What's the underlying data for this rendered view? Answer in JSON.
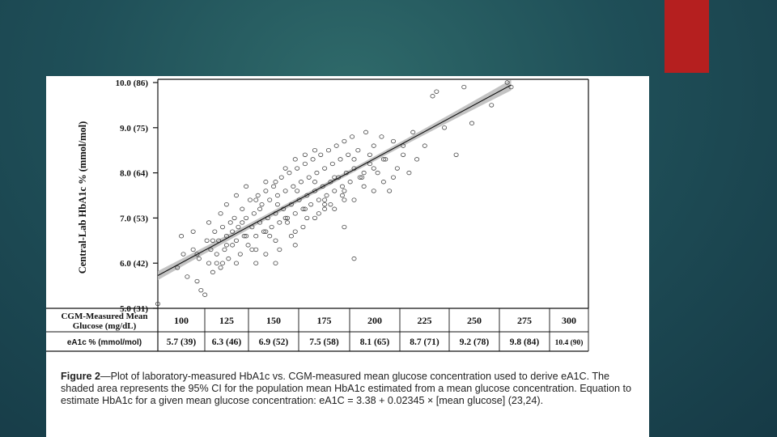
{
  "slide": {
    "accent_color": "#b51f1f",
    "background_color": "#1f4f58"
  },
  "chart_data": {
    "type": "scatter",
    "ylabel": "Central-Lab HbA1c % (mmol/mol)",
    "yticks": [
      "5.0 (31)",
      "6.0 (42)",
      "7.0 (53)",
      "8.0 (64)",
      "9.0 (75)",
      "10.0 (86)"
    ],
    "ylim": [
      5.0,
      10.0
    ],
    "xlim": [
      100,
      300
    ],
    "regression": {
      "intercept": 3.38,
      "slope": 0.02345,
      "x_range": [
        100,
        280
      ],
      "band_halfwidth_start": 0.1,
      "band_halfwidth_mid": 0.05,
      "band_halfwidth_end": 0.12
    },
    "points": [
      [
        100,
        5.1
      ],
      [
        110,
        5.9
      ],
      [
        112,
        6.6
      ],
      [
        115,
        5.7
      ],
      [
        118,
        6.3
      ],
      [
        120,
        5.6
      ],
      [
        121,
        6.1
      ],
      [
        122,
        5.4
      ],
      [
        124,
        5.3
      ],
      [
        125,
        6.5
      ],
      [
        126,
        6.0
      ],
      [
        127,
        6.3
      ],
      [
        128,
        5.8
      ],
      [
        129,
        6.7
      ],
      [
        130,
        6.2
      ],
      [
        131,
        6.5
      ],
      [
        132,
        5.9
      ],
      [
        133,
        6.8
      ],
      [
        134,
        6.3
      ],
      [
        135,
        6.6
      ],
      [
        136,
        6.1
      ],
      [
        137,
        6.9
      ],
      [
        138,
        6.4
      ],
      [
        139,
        7.0
      ],
      [
        140,
        6.5
      ],
      [
        141,
        6.8
      ],
      [
        142,
        6.2
      ],
      [
        143,
        7.2
      ],
      [
        144,
        6.6
      ],
      [
        145,
        7.0
      ],
      [
        146,
        6.4
      ],
      [
        147,
        7.4
      ],
      [
        148,
        6.8
      ],
      [
        149,
        7.1
      ],
      [
        150,
        6.6
      ],
      [
        151,
        7.5
      ],
      [
        152,
        6.9
      ],
      [
        153,
        7.3
      ],
      [
        154,
        6.7
      ],
      [
        155,
        7.6
      ],
      [
        156,
        7.0
      ],
      [
        157,
        7.4
      ],
      [
        158,
        6.8
      ],
      [
        159,
        7.7
      ],
      [
        160,
        7.1
      ],
      [
        161,
        7.5
      ],
      [
        162,
        6.9
      ],
      [
        163,
        7.9
      ],
      [
        164,
        7.2
      ],
      [
        165,
        7.6
      ],
      [
        166,
        7.0
      ],
      [
        167,
        8.0
      ],
      [
        168,
        7.3
      ],
      [
        169,
        7.7
      ],
      [
        170,
        7.1
      ],
      [
        171,
        8.1
      ],
      [
        172,
        7.4
      ],
      [
        173,
        7.8
      ],
      [
        174,
        7.2
      ],
      [
        175,
        8.2
      ],
      [
        176,
        7.5
      ],
      [
        177,
        7.9
      ],
      [
        178,
        7.3
      ],
      [
        179,
        8.3
      ],
      [
        180,
        7.6
      ],
      [
        181,
        8.0
      ],
      [
        182,
        7.4
      ],
      [
        183,
        8.4
      ],
      [
        184,
        7.7
      ],
      [
        185,
        8.1
      ],
      [
        186,
        7.5
      ],
      [
        187,
        8.5
      ],
      [
        188,
        7.8
      ],
      [
        189,
        8.2
      ],
      [
        190,
        7.6
      ],
      [
        191,
        8.6
      ],
      [
        192,
        7.9
      ],
      [
        193,
        8.3
      ],
      [
        194,
        7.7
      ],
      [
        195,
        8.7
      ],
      [
        196,
        8.0
      ],
      [
        197,
        8.4
      ],
      [
        198,
        7.8
      ],
      [
        199,
        8.8
      ],
      [
        200,
        8.1
      ],
      [
        202,
        8.5
      ],
      [
        204,
        7.9
      ],
      [
        206,
        8.9
      ],
      [
        208,
        8.2
      ],
      [
        210,
        8.6
      ],
      [
        212,
        8.0
      ],
      [
        214,
        8.8
      ],
      [
        216,
        8.3
      ],
      [
        218,
        7.6
      ],
      [
        220,
        8.7
      ],
      [
        222,
        8.1
      ],
      [
        225,
        8.4
      ],
      [
        228,
        8.0
      ],
      [
        232,
        8.3
      ],
      [
        236,
        8.6
      ],
      [
        240,
        9.7
      ],
      [
        242,
        9.8
      ],
      [
        246,
        9.0
      ],
      [
        252,
        8.4
      ],
      [
        256,
        9.9
      ],
      [
        260,
        9.1
      ],
      [
        270,
        9.5
      ],
      [
        278,
        10.0
      ],
      [
        280,
        9.9
      ],
      [
        120,
        6.2
      ],
      [
        128,
        6.5
      ],
      [
        133,
        6.0
      ],
      [
        138,
        6.7
      ],
      [
        143,
        6.9
      ],
      [
        148,
        6.3
      ],
      [
        152,
        7.2
      ],
      [
        157,
        6.6
      ],
      [
        161,
        7.3
      ],
      [
        166,
        6.9
      ],
      [
        171,
        7.6
      ],
      [
        176,
        7.0
      ],
      [
        180,
        7.8
      ],
      [
        185,
        7.3
      ],
      [
        190,
        7.9
      ],
      [
        195,
        7.4
      ],
      [
        200,
        8.3
      ],
      [
        205,
        7.7
      ],
      [
        210,
        8.1
      ],
      [
        215,
        7.8
      ],
      [
        130,
        6.0
      ],
      [
        135,
        6.4
      ],
      [
        140,
        6.0
      ],
      [
        145,
        6.6
      ],
      [
        150,
        6.3
      ],
      [
        155,
        6.7
      ],
      [
        160,
        6.5
      ],
      [
        165,
        7.0
      ],
      [
        170,
        6.7
      ],
      [
        175,
        7.2
      ],
      [
        180,
        7.0
      ],
      [
        185,
        7.4
      ],
      [
        190,
        7.2
      ],
      [
        195,
        7.6
      ],
      [
        200,
        7.4
      ],
      [
        205,
        8.0
      ],
      [
        210,
        7.6
      ],
      [
        215,
        8.3
      ],
      [
        220,
        7.9
      ],
      [
        225,
        8.6
      ],
      [
        150,
        7.4
      ],
      [
        155,
        7.8
      ],
      [
        160,
        7.8
      ],
      [
        165,
        8.1
      ],
      [
        170,
        8.3
      ],
      [
        175,
        8.4
      ],
      [
        180,
        8.5
      ],
      [
        160,
        6.0
      ],
      [
        170,
        6.4
      ],
      [
        185,
        7.2
      ],
      [
        200,
        6.1
      ],
      [
        195,
        6.8
      ],
      [
        145,
        7.7
      ],
      [
        140,
        7.5
      ],
      [
        135,
        7.3
      ],
      [
        132,
        7.1
      ],
      [
        126,
        6.9
      ],
      [
        118,
        6.7
      ],
      [
        113,
        6.2
      ],
      [
        230,
        8.9
      ],
      [
        150,
        6.0
      ],
      [
        155,
        6.2
      ],
      [
        162,
        6.3
      ],
      [
        168,
        6.6
      ],
      [
        174,
        6.8
      ],
      [
        182,
        7.1
      ],
      [
        188,
        7.3
      ],
      [
        194,
        7.5
      ],
      [
        203,
        7.9
      ],
      [
        208,
        8.4
      ]
    ],
    "table": {
      "row1_label_line1": "CGM-Measured Mean",
      "row1_label_line2": "Glucose (mg/dL)",
      "row2_label": "eA1c % (mmol/mol)",
      "glucose": [
        "100",
        "125",
        "150",
        "175",
        "200",
        "225",
        "250",
        "275",
        "300"
      ],
      "ea1c": [
        "5.7 (39)",
        "6.3 (46)",
        "6.9 (52)",
        "7.5 (58)",
        "8.1 (65)",
        "8.7 (71)",
        "9.2 (78)",
        "9.8 (84)",
        "10.4 (90)"
      ]
    }
  },
  "caption": {
    "figure_label": "Figure 2",
    "text": "—Plot of laboratory-measured HbA1c vs. CGM-measured mean glucose concentration used to derive eA1C. The shaded area represents the 95% CI for the population mean HbA1c estimated from a mean glucose concentration. Equation to estimate HbA1c for a given mean glucose concentration: eA1C = 3.38 + 0.02345 × [mean glucose] (23,24)."
  }
}
